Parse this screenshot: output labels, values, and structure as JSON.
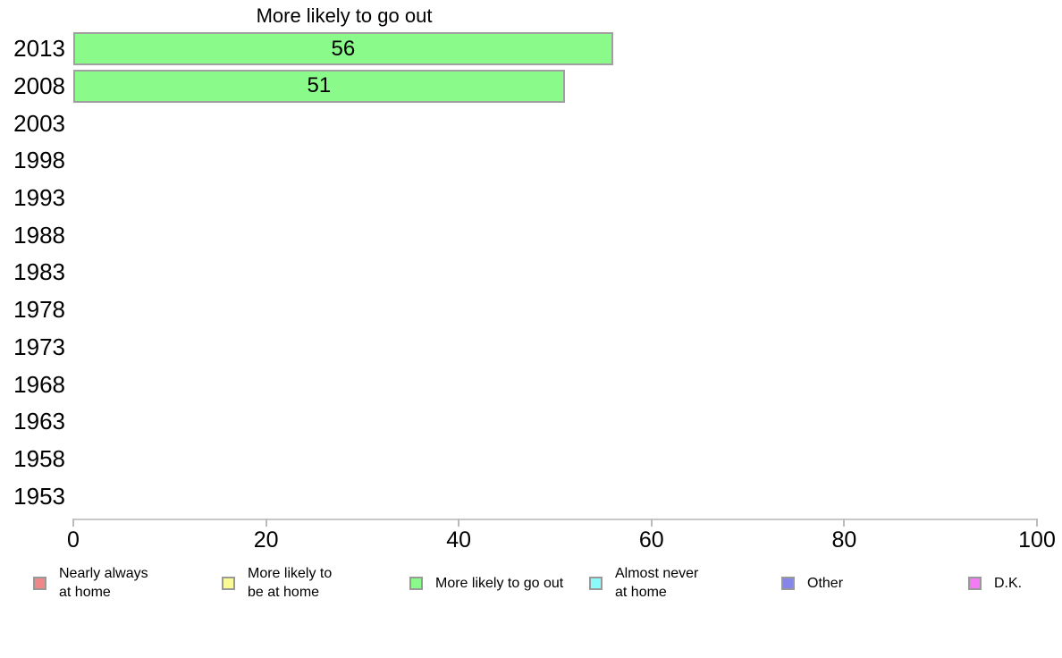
{
  "page": {
    "background": "#FFFFFF"
  },
  "colors": {
    "axis_line": "#C8C8C8",
    "tick_mark": "#BBBBBB",
    "swatch_border": "#999999",
    "text": "#000000"
  },
  "chart_data": {
    "type": "bar",
    "orientation": "horizontal",
    "title": "More likely to go out",
    "categories": [
      "2013",
      "2008",
      "2003",
      "1998",
      "1993",
      "1988",
      "1983",
      "1978",
      "1973",
      "1968",
      "1963",
      "1958",
      "1953"
    ],
    "series": [
      {
        "name": "More likely to go out",
        "color": "#8AFA8A",
        "border_color": "#A0A0A0",
        "values": [
          56,
          51,
          null,
          null,
          null,
          null,
          null,
          null,
          null,
          null,
          null,
          null,
          null
        ]
      }
    ],
    "xlim": [
      0,
      100
    ],
    "x_ticks": [
      0,
      20,
      40,
      60,
      80,
      100
    ],
    "grid": false,
    "bar_value_labels_visible": true,
    "legend_position": "bottom",
    "legend": [
      {
        "label": "Nearly always\nat home",
        "color": "#F18888"
      },
      {
        "label": "More likely to\nbe at home",
        "color": "#FAFA96"
      },
      {
        "label": "More likely to go out",
        "color": "#8AFA8A"
      },
      {
        "label": "Almost never\nat home",
        "color": "#8AFAFA"
      },
      {
        "label": "Other",
        "color": "#8585EA"
      },
      {
        "label": "D.K.",
        "color": "#F47BF4"
      }
    ]
  }
}
